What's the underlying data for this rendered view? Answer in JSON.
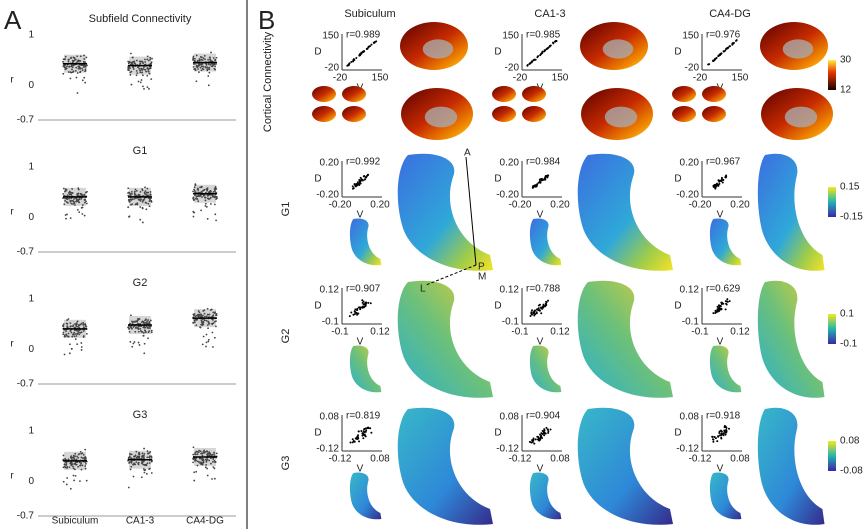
{
  "panel_a": {
    "label": "A",
    "y_label": "r",
    "rows": [
      {
        "title": "Subfield Connectivity",
        "ticks": [
          "1",
          "0",
          "-0.7"
        ]
      },
      {
        "title": "G1",
        "ticks": [
          "1",
          "0",
          "-0.7"
        ]
      },
      {
        "title": "G2",
        "ticks": [
          "1",
          "0",
          "-0.7"
        ]
      },
      {
        "title": "G3",
        "ticks": [
          "1",
          "0",
          "-0.7"
        ]
      }
    ],
    "categories": [
      "Subiculum",
      "CA1-3",
      "CA4-DG"
    ]
  },
  "panel_b": {
    "label": "B",
    "columns": [
      "Subiculum",
      "CA1-3",
      "CA4-DG"
    ],
    "axis_d": "D",
    "axis_v": "V",
    "orientation": [
      "A",
      "P",
      "M",
      "L"
    ],
    "rows": [
      {
        "label": "Cortical Connectivity",
        "colorbar": [
          "30",
          "12"
        ],
        "y_ticks": [
          "150",
          "-20"
        ],
        "x_ticks": [
          "-20",
          "150"
        ],
        "r": [
          "r=0.989",
          "r=0.985",
          "r=0.976"
        ]
      },
      {
        "label": "G1",
        "colorbar": [
          "0.15",
          "-0.15"
        ],
        "y_ticks": [
          "0.20",
          "-0.20"
        ],
        "x_ticks": [
          "-0.20",
          "0.20"
        ],
        "r": [
          "r=0.992",
          "r=0.984",
          "r=0.967"
        ]
      },
      {
        "label": "G2",
        "colorbar": [
          "0.1",
          "-0.1"
        ],
        "y_ticks": [
          "0.12",
          "-0.1"
        ],
        "x_ticks": [
          "-0.1",
          "0.12"
        ],
        "r": [
          "r=0.907",
          "r=0.788",
          "r=0.629"
        ]
      },
      {
        "label": "G3",
        "colorbar": [
          "0.08",
          "-0.08"
        ],
        "y_ticks": [
          "0.08",
          "-0.12"
        ],
        "x_ticks": [
          "-0.12",
          "0.08"
        ],
        "r": [
          "r=0.819",
          "r=0.904",
          "r=0.918"
        ]
      }
    ]
  }
}
